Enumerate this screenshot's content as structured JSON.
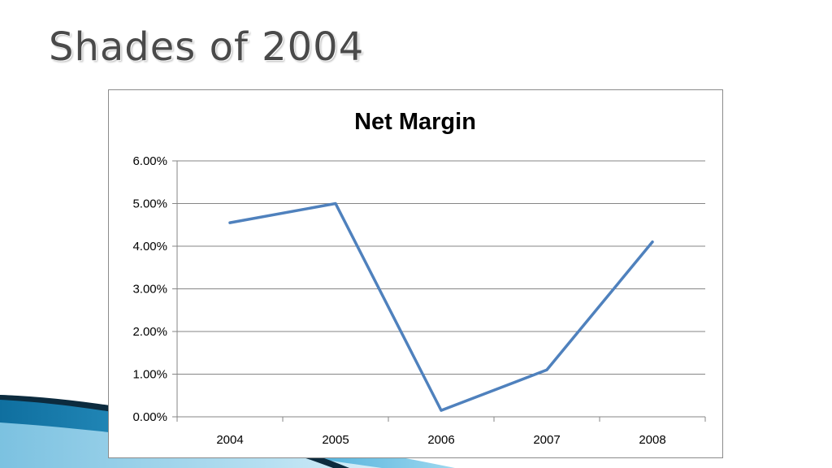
{
  "slide": {
    "title": "Shades of 2004"
  },
  "colors": {
    "series_line": "#4f81bd",
    "gridline": "#868686",
    "axis": "#868686",
    "title_text": "#4a4a4a",
    "decor_dark": "#0c2b3e",
    "decor_blue": "#1b7fb4",
    "decor_light": "#6fc2e4"
  },
  "chart_data": {
    "type": "line",
    "title": "Net Margin",
    "categories": [
      "2004",
      "2005",
      "2006",
      "2007",
      "2008"
    ],
    "series": [
      {
        "name": "Net Margin",
        "values": [
          4.55,
          5.0,
          0.15,
          1.1,
          4.1
        ]
      }
    ],
    "ylim": [
      0,
      6
    ],
    "yticks": [
      0,
      1,
      2,
      3,
      4,
      5,
      6
    ],
    "ytick_labels": [
      "0.00%",
      "1.00%",
      "2.00%",
      "3.00%",
      "4.00%",
      "5.00%",
      "6.00%"
    ],
    "xlabel": "",
    "ylabel": "",
    "grid": true,
    "legend": "none"
  }
}
